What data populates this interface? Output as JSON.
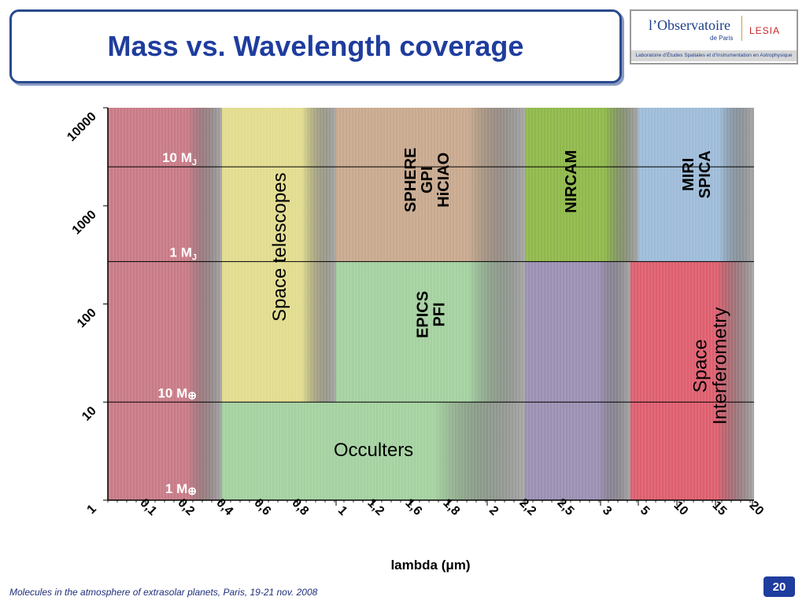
{
  "slide": {
    "title": "Mass vs. Wavelength coverage",
    "footer": "Molecules in the atmosphere of extrasolar planets, Paris, 19-21 nov. 2008",
    "page_number": "20"
  },
  "logo": {
    "name": "l’Observatoire",
    "subtitle": "de Paris",
    "partner": "LESIA",
    "tagline": "Laboratoire d’Études Spatiales et d’Instrumentation en Astrophysique"
  },
  "colors": {
    "title": "#1f3d9e",
    "axis": "#000000",
    "red": "#c87a86",
    "yellow": "#e2dc8e",
    "tan": "#c8a98e",
    "green_top": "#8fb84a",
    "blue": "#9dbbd8",
    "light_green": "#a4d1a0",
    "purple": "#9b8fb2",
    "pink": "#dd5e6e"
  },
  "chart_data": {
    "type": "chart",
    "xlabel": "lambda (μm)",
    "ylabel": "",
    "y_scale": "log",
    "ylim": [
      1,
      10000
    ],
    "x_scale": "categorical",
    "x_categories": [
      "0,1",
      "0,2",
      "0,4",
      "0,6",
      "0,8",
      "1",
      "1,2",
      "1,6",
      "1,8",
      "2",
      "2,2",
      "2,5",
      "3",
      "5",
      "10",
      "15",
      "20"
    ],
    "y_ticks": [
      "1",
      "10",
      "100",
      "1000",
      "10000"
    ],
    "reference_lines": [
      {
        "label_main": "10 M",
        "label_sub": "J",
        "label_sup": "",
        "value": 2500
      },
      {
        "label_main": "1 M",
        "label_sub": "J",
        "label_sup": "",
        "value": 270
      },
      {
        "label_main": "10 M",
        "label_sub": "",
        "label_sup": "⊕",
        "value": 10
      },
      {
        "label_main": "1 M",
        "label_sub": "",
        "label_sup": "⊕",
        "value": 1
      }
    ],
    "regions": [
      {
        "x_from": "lower-edge",
        "x_to": "0,4",
        "y_range": [
          1,
          10000
        ],
        "color": "red",
        "lines": []
      },
      {
        "x_from": "0,4",
        "x_to": "1",
        "y_range": [
          10,
          10000
        ],
        "color": "yellow",
        "lines": [
          "Space telescopes"
        ],
        "text_rotated": true
      },
      {
        "x_from": "1",
        "x_to": "2,2",
        "y_range": [
          270,
          10000
        ],
        "color": "tan",
        "lines": [
          "SPHERE",
          "GPI",
          "HiCIAO"
        ],
        "text_rotated": true
      },
      {
        "x_from": "2,2",
        "x_to": "5",
        "y_range": [
          270,
          10000
        ],
        "color": "green_top",
        "lines": [
          "NIRCAM"
        ],
        "text_rotated": true
      },
      {
        "x_from": "5",
        "x_to": "upper-edge",
        "y_range": [
          270,
          10000
        ],
        "color": "blue",
        "lines": [
          "MIRI",
          "SPICA"
        ],
        "text_rotated": true
      },
      {
        "x_from": "1",
        "x_to": "2,2",
        "y_range": [
          10,
          270
        ],
        "color": "light_green",
        "lines": [
          "EPICS",
          "PFI"
        ],
        "text_rotated": true
      },
      {
        "x_from": "0,4",
        "x_to": "2,2",
        "y_range": [
          1,
          10
        ],
        "color": "light_green",
        "lines": [
          "Occulters"
        ],
        "text_rotated": false
      },
      {
        "x_from": "2,2",
        "x_to": "between 3 and 5",
        "y_range": [
          1,
          270
        ],
        "color": "purple",
        "lines": []
      },
      {
        "x_from": "between 3 and 5",
        "x_to": "upper-edge",
        "y_range": [
          1,
          270
        ],
        "color": "pink",
        "lines": [
          "Space",
          "Interferometry"
        ],
        "text_rotated": true
      }
    ]
  }
}
